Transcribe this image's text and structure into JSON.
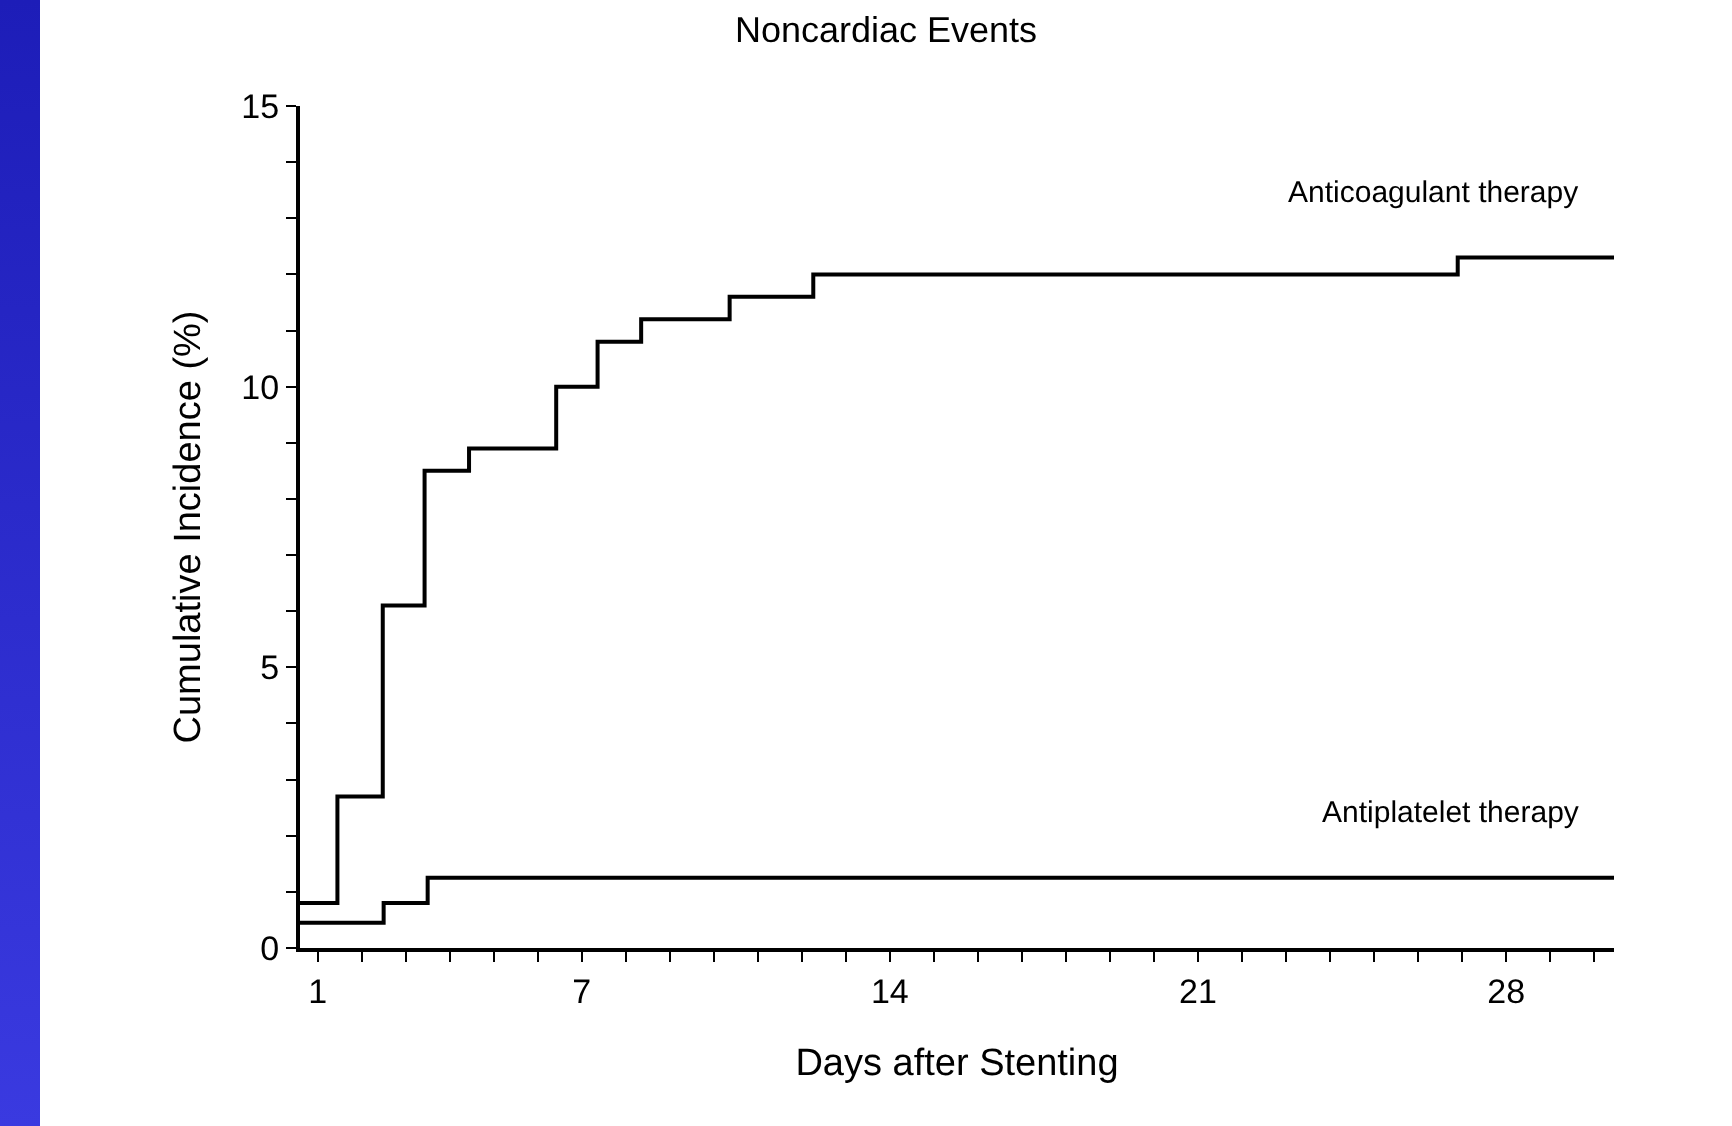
{
  "chart_data": {
    "type": "step",
    "title": "Noncardiac Events",
    "xlabel": "Days after Stenting",
    "ylabel": "Cumulative Incidence (%)",
    "series": [
      {
        "name": "Anticoagulant therapy",
        "color": "#000000",
        "x": [
          0.6,
          1.45,
          2.48,
          3.43,
          4.44,
          6.42,
          7.36,
          8.35,
          10.36,
          12.26,
          26.9,
          30.45
        ],
        "values": [
          0.8,
          2.7,
          6.1,
          8.5,
          8.9,
          10.0,
          10.8,
          11.2,
          11.6,
          12.0,
          12.3,
          12.3
        ]
      },
      {
        "name": "Antiplatelet therapy",
        "color": "#000000",
        "x": [
          0.6,
          2.5,
          3.5,
          30.45
        ],
        "values": [
          0.45,
          0.8,
          1.25,
          1.25
        ]
      }
    ],
    "xlim": [
      0.6,
      30.45
    ],
    "xticks": [
      1,
      {
        "value": 2,
        "label": null
      },
      {
        "value": 3,
        "label": null
      },
      {
        "value": 4,
        "label": null
      },
      {
        "value": 5,
        "label": null
      },
      {
        "value": 6,
        "label": null
      },
      7,
      {
        "value": 8,
        "label": null
      },
      {
        "value": 9,
        "label": null
      },
      {
        "value": 10,
        "label": null
      },
      {
        "value": 11,
        "label": null
      },
      {
        "value": 12,
        "label": null
      },
      {
        "value": 13,
        "label": null
      },
      14,
      {
        "value": 15,
        "label": null
      },
      {
        "value": 16,
        "label": null
      },
      {
        "value": 17,
        "label": null
      },
      {
        "value": 18,
        "label": null
      },
      {
        "value": 19,
        "label": null
      },
      {
        "value": 20,
        "label": null
      },
      21,
      {
        "value": 22,
        "label": null
      },
      {
        "value": 23,
        "label": null
      },
      {
        "value": 24,
        "label": null
      },
      {
        "value": 25,
        "label": null
      },
      {
        "value": 26,
        "label": null
      },
      {
        "value": 27,
        "label": null
      },
      28,
      {
        "value": 29,
        "label": null
      },
      {
        "value": 30,
        "label": null
      }
    ],
    "ylim": [
      0,
      15
    ],
    "yticks": [
      0,
      {
        "value": 1,
        "label": null
      },
      {
        "value": 2,
        "label": null
      },
      {
        "value": 3,
        "label": null
      },
      {
        "value": 4,
        "label": null
      },
      5,
      {
        "value": 6,
        "label": null
      },
      {
        "value": 7,
        "label": null
      },
      {
        "value": 8,
        "label": null
      },
      {
        "value": 9,
        "label": null
      },
      10,
      {
        "value": 11,
        "label": null
      },
      {
        "value": 12,
        "label": null
      },
      {
        "value": 13,
        "label": null
      },
      {
        "value": 14,
        "label": null
      },
      15
    ],
    "grid": false,
    "legend": false,
    "line_style": "solid",
    "marker": "none"
  }
}
